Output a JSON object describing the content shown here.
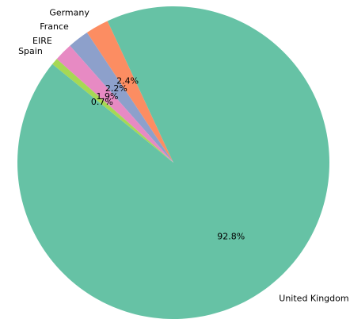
{
  "chart_data": {
    "type": "pie",
    "title": "",
    "labels": [
      "Germany",
      "France",
      "EIRE",
      "Spain",
      "United Kingdom"
    ],
    "values": [
      2.4,
      2.2,
      1.9,
      0.7,
      92.8
    ],
    "percent_labels": [
      "2.4%",
      "2.2%",
      "1.9%",
      "0.7%",
      "92.8%"
    ],
    "colors": [
      "#fc8d62",
      "#8da0cb",
      "#e78ac3",
      "#a6d854",
      "#66c2a5"
    ],
    "legend": "none"
  }
}
